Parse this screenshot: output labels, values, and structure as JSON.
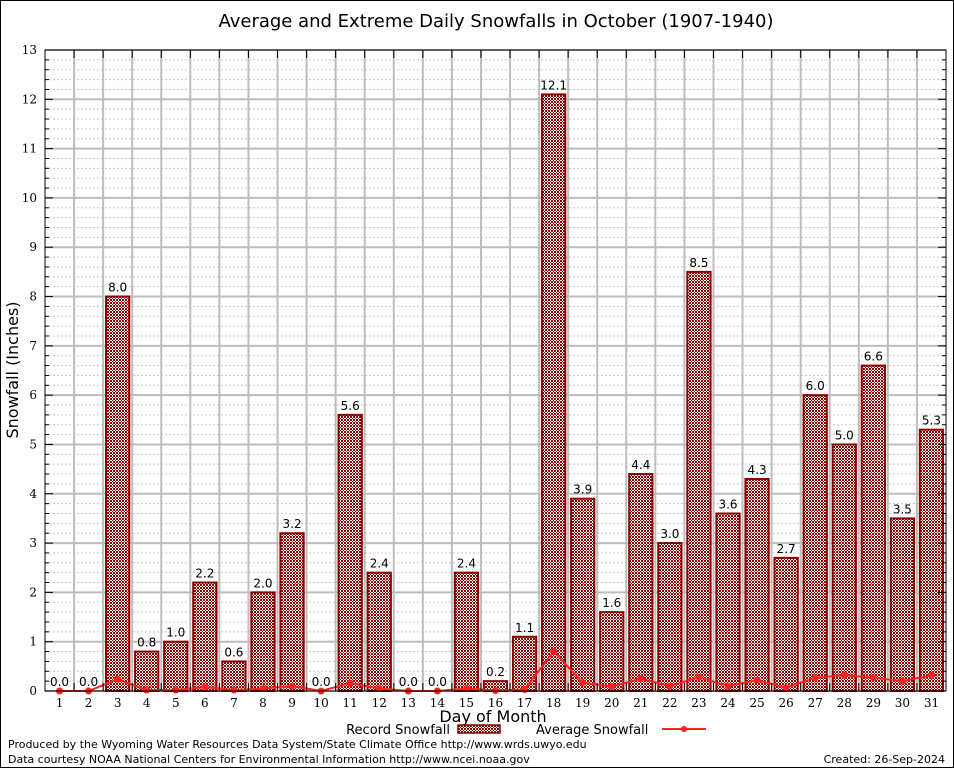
{
  "chart_data": {
    "type": "bar",
    "title": "Average and Extreme Daily Snowfalls in October (1907-1940)",
    "xlabel": "Day of Month",
    "ylabel": "Snowfall (Inches)",
    "ylim": [
      0,
      13
    ],
    "yticks": [
      "0",
      "1",
      "2",
      "3",
      "4",
      "5",
      "6",
      "7",
      "8",
      "9",
      "10",
      "11",
      "12",
      "13"
    ],
    "grid": true,
    "legend_position": "bottom-center",
    "categories": [
      "1",
      "2",
      "3",
      "4",
      "5",
      "6",
      "7",
      "8",
      "9",
      "10",
      "11",
      "12",
      "13",
      "14",
      "15",
      "16",
      "17",
      "18",
      "19",
      "20",
      "21",
      "22",
      "23",
      "24",
      "25",
      "26",
      "27",
      "28",
      "29",
      "30",
      "31"
    ],
    "series": [
      {
        "name": "Record Snowfall",
        "kind": "bar",
        "color": "#8b0000",
        "values": [
          0.0,
          0.0,
          8.0,
          0.8,
          1.0,
          2.2,
          0.6,
          2.0,
          3.2,
          0.0,
          5.6,
          2.4,
          0.0,
          0.0,
          2.4,
          0.2,
          1.1,
          12.1,
          3.9,
          1.6,
          4.4,
          3.0,
          8.5,
          3.6,
          4.3,
          2.7,
          6.0,
          5.0,
          6.6,
          3.5,
          5.3
        ],
        "labels": [
          "0.0",
          "0.0",
          "8.0",
          "0.8",
          "1.0",
          "2.2",
          "0.6",
          "2.0",
          "3.2",
          "0.0",
          "5.6",
          "2.4",
          "0.0",
          "0.0",
          "2.4",
          "0.2",
          "1.1",
          "12.1",
          "3.9",
          "1.6",
          "4.4",
          "3.0",
          "8.5",
          "3.6",
          "4.3",
          "2.7",
          "6.0",
          "5.0",
          "6.6",
          "3.5",
          "5.3"
        ]
      },
      {
        "name": "Average Snowfall",
        "kind": "line",
        "color": "#ff2020",
        "values": [
          0.0,
          0.0,
          0.24,
          0.02,
          0.02,
          0.08,
          0.02,
          0.05,
          0.1,
          0.0,
          0.16,
          0.05,
          0.0,
          0.0,
          0.05,
          0.01,
          0.03,
          0.8,
          0.17,
          0.09,
          0.25,
          0.1,
          0.28,
          0.1,
          0.22,
          0.07,
          0.27,
          0.32,
          0.27,
          0.2,
          0.32
        ]
      }
    ]
  },
  "footer": {
    "producer": "Produced by the Wyoming Water Resources Data System/State Climate Office http://www.wrds.uwyo.edu",
    "source": "Data courtesy NOAA National Centers for Environmental Information http://www.ncei.noaa.gov",
    "created": "Created:  26-Sep-2024"
  }
}
